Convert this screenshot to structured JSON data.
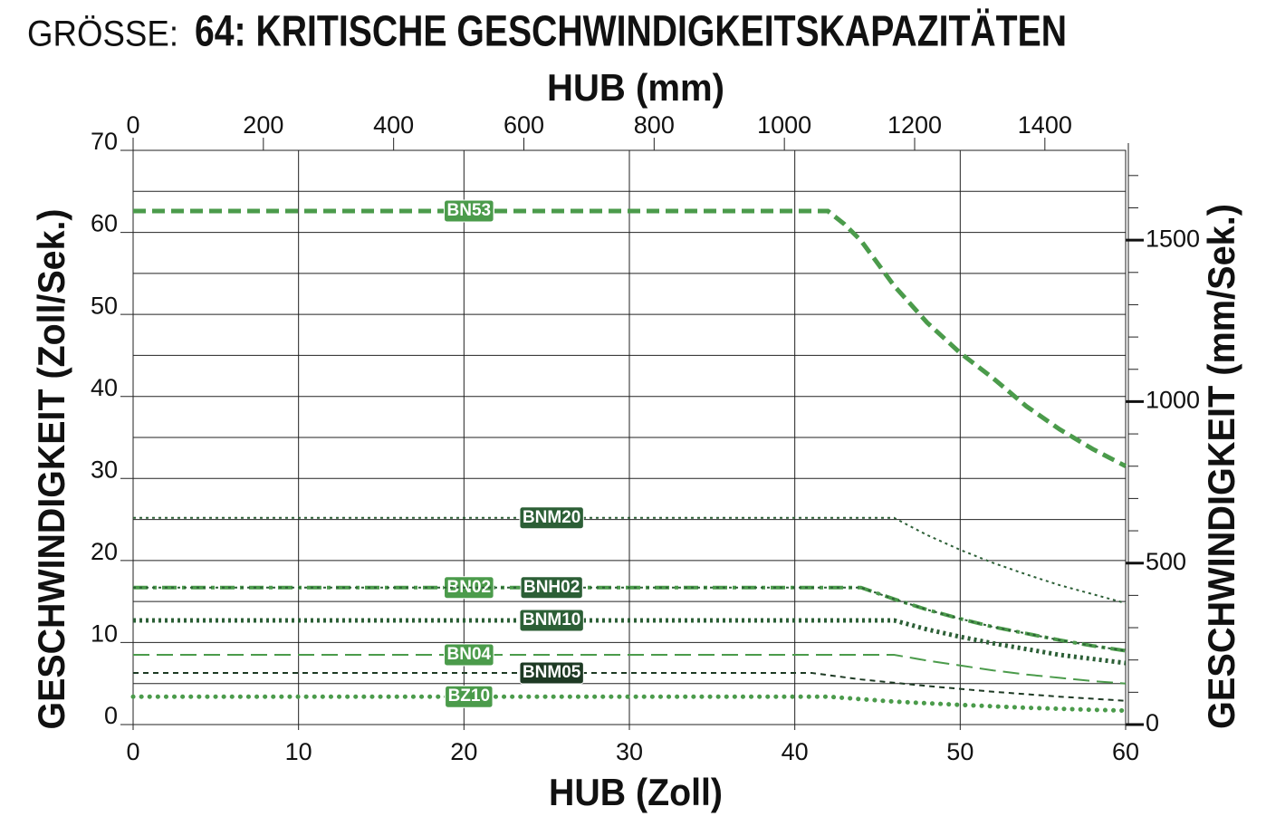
{
  "chart_data": {
    "type": "line",
    "title_prefix": "GRÖSSE:",
    "title": "64: KRITISCHE GESCHWINDIGKEITSKAPAZITÄTEN",
    "xlabel": "HUB (Zoll)",
    "x2label": "HUB (mm)",
    "ylabel": "GESCHWINDIGKEIT (Zoll/Sek.)",
    "y2label": "GESCHWINDIGKEIT (mm/Sek.)",
    "xlim": [
      0,
      60
    ],
    "xticks": [
      0,
      10,
      20,
      30,
      40,
      50,
      60
    ],
    "ylim": [
      0,
      70
    ],
    "yticks": [
      0,
      10,
      20,
      30,
      40,
      50,
      60,
      70
    ],
    "yminor": [
      5,
      15,
      25,
      35,
      45,
      55,
      65
    ],
    "x2lim": [
      0,
      1524
    ],
    "x2ticks": [
      0,
      200,
      400,
      600,
      800,
      1000,
      1200,
      1400
    ],
    "y2lim": [
      0,
      1778
    ],
    "y2ticks": [
      0,
      500,
      1000,
      1500
    ],
    "y2minor": [
      100,
      200,
      300,
      400,
      600,
      700,
      800,
      900,
      1100,
      1200,
      1300,
      1400,
      1600,
      1700
    ],
    "grid": true,
    "series": [
      {
        "name": "BN53",
        "color": "#4b9b4b",
        "line_style": "dashed",
        "width": 5,
        "x": [
          0,
          42,
          43,
          44,
          46,
          48,
          50,
          52,
          54,
          56,
          58,
          60
        ],
        "values": [
          62.6,
          62.6,
          61,
          59,
          53.5,
          49,
          45.3,
          42.2,
          38.8,
          36,
          33.6,
          31.5
        ]
      },
      {
        "name": "BNM20",
        "color": "#2c5f36",
        "line_style": "dotted",
        "width": 2,
        "x": [
          0,
          46,
          48,
          50,
          52,
          54,
          56,
          58,
          60
        ],
        "values": [
          25.2,
          25.2,
          23.1,
          21.3,
          19.7,
          18.3,
          17.0,
          15.9,
          14.8
        ]
      },
      {
        "name": "BN02",
        "color": "#4b9b4b",
        "line_style": "dashdot",
        "width": 4,
        "x": [
          0,
          44,
          46,
          48,
          50,
          52,
          54,
          56,
          58,
          60
        ],
        "values": [
          16.7,
          16.7,
          15.3,
          14.0,
          12.9,
          11.9,
          11.1,
          10.3,
          9.6,
          9.0
        ]
      },
      {
        "name": "BNH02",
        "color": "#2c5f36",
        "line_style": "dotted",
        "width": 2,
        "x": [
          0,
          44,
          46,
          48,
          50,
          52,
          54,
          56,
          58,
          60
        ],
        "values": [
          16.7,
          16.7,
          15.3,
          14.0,
          12.9,
          11.9,
          11.1,
          10.3,
          9.6,
          9.0
        ]
      },
      {
        "name": "BNM10",
        "color": "#2c5f36",
        "line_style": "dotted",
        "width": 5,
        "x": [
          0,
          46,
          48,
          50,
          52,
          54,
          56,
          58,
          60
        ],
        "values": [
          12.7,
          12.7,
          11.6,
          10.7,
          9.9,
          9.2,
          8.5,
          8.0,
          7.5
        ]
      },
      {
        "name": "BN04",
        "color": "#4b9b4b",
        "line_style": "longdash",
        "width": 2,
        "x": [
          0,
          46,
          48,
          50,
          52,
          54,
          56,
          58,
          60
        ],
        "values": [
          8.5,
          8.5,
          7.8,
          7.2,
          6.6,
          6.1,
          5.7,
          5.3,
          5.0
        ]
      },
      {
        "name": "BNM05",
        "color": "#1e3a24",
        "line_style": "shortdash",
        "width": 2,
        "x": [
          0,
          41,
          44,
          48,
          52,
          56,
          60
        ],
        "values": [
          6.3,
          6.3,
          5.5,
          4.7,
          4.0,
          3.4,
          2.9
        ]
      },
      {
        "name": "BZ10",
        "color": "#4b9b4b",
        "line_style": "dots",
        "width": 5,
        "x": [
          0,
          42,
          46,
          50,
          54,
          58,
          60
        ],
        "values": [
          3.4,
          3.4,
          2.8,
          2.4,
          2.05,
          1.8,
          1.7
        ]
      }
    ]
  }
}
